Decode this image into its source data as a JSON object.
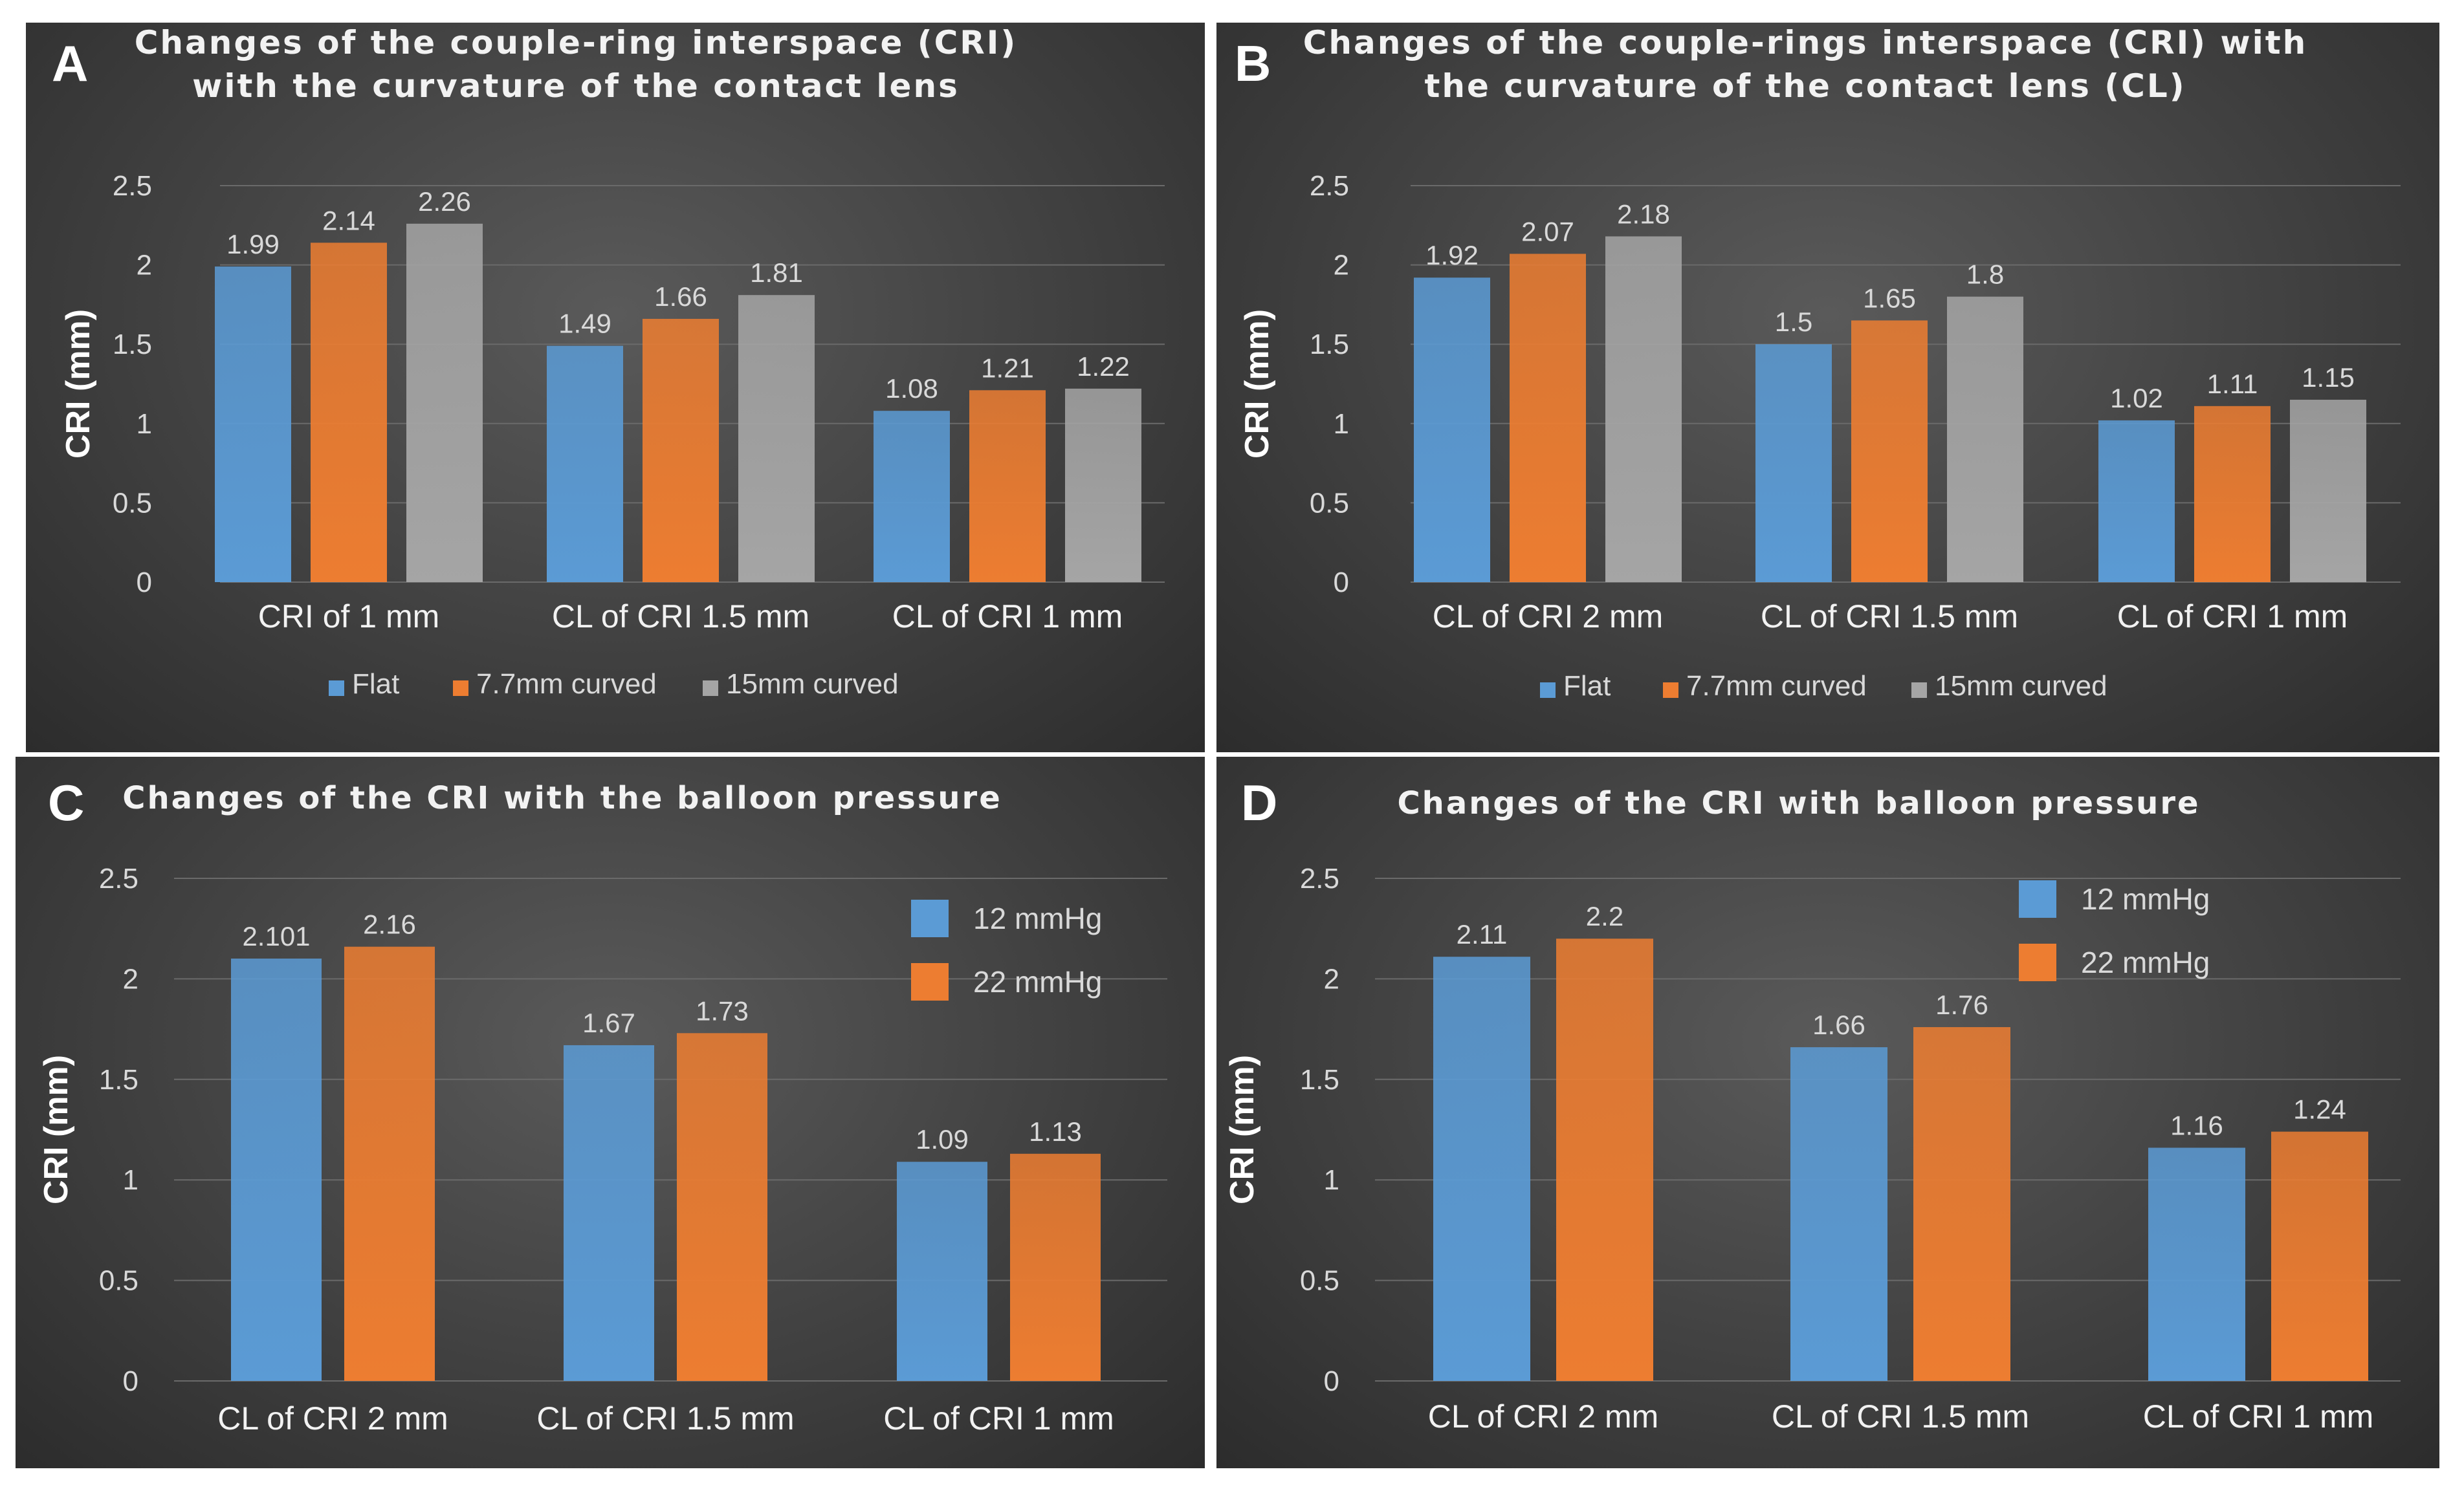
{
  "colors": {
    "Flat": "#5b9bd5",
    "7.7mm curved": "#ed7d31",
    "15mm curved": "#a5a5a5",
    "12 mmHg": "#5b9bd5",
    "22 mmHg": "#ed7d31"
  },
  "chart_data": [
    {
      "type": "bar",
      "panel_letter": "A",
      "title": [
        "Changes of the couple-ring interspace (CRI)",
        "with the curvature of the contact lens"
      ],
      "ylabel": "CRI (mm)",
      "ylim": [
        0,
        2.5
      ],
      "yticks": [
        "0",
        "0.5",
        "1",
        "1.5",
        "2",
        "2.5"
      ],
      "categories": [
        "CRI of 1 mm",
        "CL of CRI 1.5 mm",
        "CL of CRI 1 mm"
      ],
      "series": [
        {
          "name": "Flat",
          "values": [
            1.99,
            1.49,
            1.08
          ],
          "labels": [
            "1.99",
            "1.49",
            "1.08"
          ]
        },
        {
          "name": "7.7mm curved",
          "values": [
            2.14,
            1.66,
            1.21
          ],
          "labels": [
            "2.14",
            "1.66",
            "1.21"
          ]
        },
        {
          "name": "15mm curved",
          "values": [
            2.26,
            1.81,
            1.22
          ],
          "labels": [
            "2.26",
            "1.81",
            "1.22"
          ]
        }
      ],
      "legend_position": "bottom"
    },
    {
      "type": "bar",
      "panel_letter": "B",
      "title": [
        "Changes of the couple-rings interspace (CRI) with",
        "the curvature of the contact lens (CL)"
      ],
      "ylabel": "CRI (mm)",
      "ylim": [
        0,
        2.5
      ],
      "yticks": [
        "0",
        "0.5",
        "1",
        "1.5",
        "2",
        "2.5"
      ],
      "categories": [
        "CL of CRI 2 mm",
        "CL of CRI 1.5 mm",
        "CL of CRI 1 mm"
      ],
      "series": [
        {
          "name": "Flat",
          "values": [
            1.92,
            1.5,
            1.02
          ],
          "labels": [
            "1.92",
            "1.5",
            "1.02"
          ]
        },
        {
          "name": "7.7mm curved",
          "values": [
            2.07,
            1.65,
            1.11
          ],
          "labels": [
            "2.07",
            "1.65",
            "1.11"
          ]
        },
        {
          "name": "15mm curved",
          "values": [
            2.18,
            1.8,
            1.15
          ],
          "labels": [
            "2.18",
            "1.8",
            "1.15"
          ]
        }
      ],
      "legend_position": "bottom"
    },
    {
      "type": "bar",
      "panel_letter": "C",
      "title": [
        "Changes of the CRI with the balloon pressure"
      ],
      "ylabel": "CRI (mm)",
      "ylim": [
        0,
        2.5
      ],
      "yticks": [
        "0",
        "0.5",
        "1",
        "1.5",
        "2",
        "2.5"
      ],
      "categories": [
        "CL of CRI 2 mm",
        "CL of CRI 1.5 mm",
        "CL of CRI 1 mm"
      ],
      "series": [
        {
          "name": "12 mmHg",
          "values": [
            2.101,
            1.67,
            1.09
          ],
          "labels": [
            "2.101",
            "1.67",
            "1.09"
          ]
        },
        {
          "name": "22 mmHg",
          "values": [
            2.16,
            1.73,
            1.13
          ],
          "labels": [
            "2.16",
            "1.73",
            "1.13"
          ]
        }
      ],
      "legend_position": "top-right"
    },
    {
      "type": "bar",
      "panel_letter": "D",
      "title": [
        "Changes of the CRI with balloon pressure"
      ],
      "ylabel": "CRI (mm)",
      "ylim": [
        0,
        2.5
      ],
      "yticks": [
        "0",
        "0.5",
        "1",
        "1.5",
        "2",
        "2.5"
      ],
      "categories": [
        "CL of CRI 2 mm",
        "CL of CRI 1.5 mm",
        "CL of CRI 1 mm"
      ],
      "series": [
        {
          "name": "12 mmHg",
          "values": [
            2.11,
            1.66,
            1.16
          ],
          "labels": [
            "2.11",
            "1.66",
            "1.16"
          ]
        },
        {
          "name": "22 mmHg",
          "values": [
            2.2,
            1.76,
            1.24
          ],
          "labels": [
            "2.2",
            "1.76",
            "1.24"
          ]
        }
      ],
      "legend_position": "top-center"
    }
  ]
}
